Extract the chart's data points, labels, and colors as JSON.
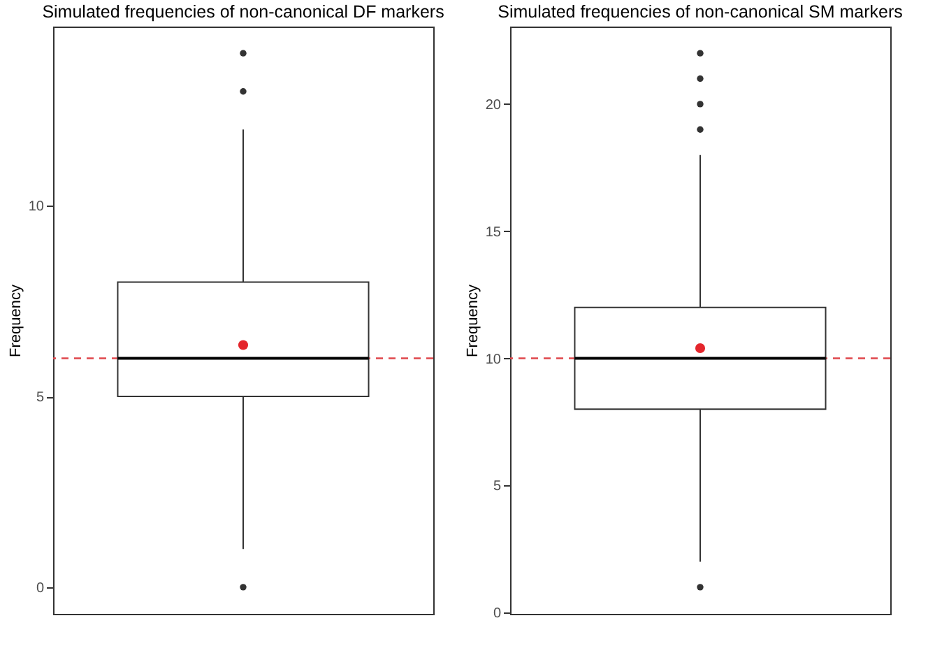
{
  "chart_data": [
    {
      "type": "box",
      "title": "Simulated frequencies of non-canonical DF markers",
      "ylabel": "Frequency",
      "categories": [
        null
      ],
      "boxes": [
        {
          "low": 1,
          "q1": 5,
          "median": 6,
          "q3": 8,
          "high": 12,
          "mean": 6.35,
          "outliers": [
            0,
            13,
            14
          ]
        }
      ],
      "ylim": [
        -0.7,
        14.7
      ],
      "yticks": [
        0,
        5,
        10
      ],
      "ref_lines": [
        {
          "axis": "y",
          "value": 6,
          "color": "#e0474c",
          "line_style": "dashed"
        }
      ]
    },
    {
      "type": "box",
      "title": "Simulated frequencies of non-canonical SM markers",
      "ylabel": "Frequency",
      "categories": [
        null
      ],
      "boxes": [
        {
          "low": 2,
          "q1": 8,
          "median": 10,
          "q3": 12,
          "high": 18,
          "mean": 10.4,
          "outliers": [
            1,
            19,
            20,
            21,
            22
          ]
        }
      ],
      "ylim": [
        -0.05,
        23.05
      ],
      "yticks": [
        0,
        5,
        10,
        15,
        20
      ],
      "ref_lines": [
        {
          "axis": "y",
          "value": 10,
          "color": "#e0474c",
          "line_style": "dashed"
        }
      ]
    }
  ]
}
